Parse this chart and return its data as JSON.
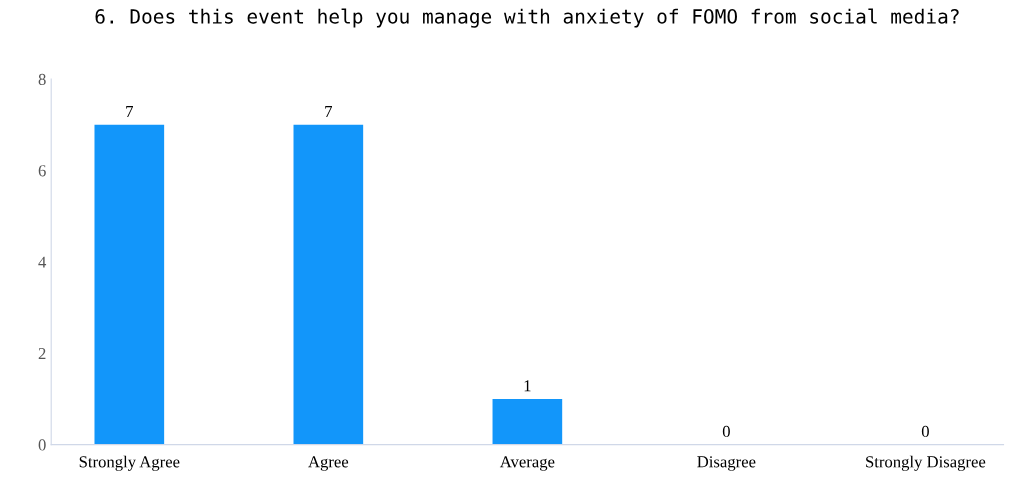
{
  "chart_data": {
    "type": "bar",
    "title": "6. Does this event help you manage with anxiety of FOMO from social media?",
    "categories": [
      "Strongly Agree",
      "Agree",
      "Average",
      "Disagree",
      "Strongly Disagree"
    ],
    "values": [
      7,
      7,
      1,
      0,
      0
    ],
    "color": "#1296fa",
    "ylim": [
      0,
      8
    ],
    "yticks": [
      0,
      2,
      4,
      6,
      8
    ],
    "grid": false,
    "data_labels": true
  }
}
